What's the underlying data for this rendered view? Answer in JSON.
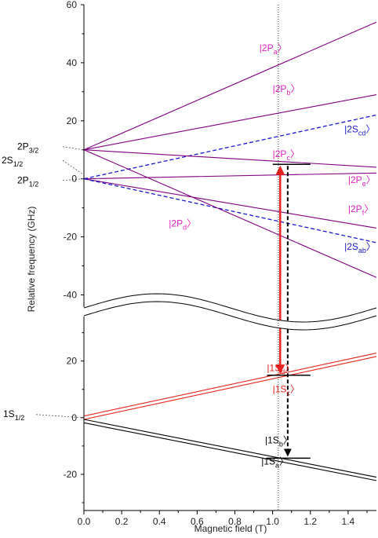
{
  "chart_data": {
    "type": "line",
    "xlabel": "Magnetic field (T)",
    "ylabel": "Relative frequency (GHz)",
    "xlim": [
      0,
      1.55
    ],
    "x_ticks": [
      "0.0",
      "0.2",
      "0.4",
      "0.6",
      "0.8",
      "1.0",
      "1.2",
      "1.4"
    ],
    "marker_line_x": 1.03,
    "colors": {
      "axis": "#000000",
      "p_levels": "#800080",
      "s2_levels": "#1a1acc",
      "s1d_levels": "#e8231f",
      "s1ab_levels": "#000000",
      "labels_p": "#e020c0",
      "labels_2s": "#1a1acc",
      "labels_1s_red": "#e8231f"
    },
    "upper_panel": {
      "ylim": [
        -48,
        60
      ],
      "y_ticks": [
        "60",
        "40",
        "20",
        "0",
        "-20",
        "-40"
      ],
      "y_tick_values": [
        60,
        40,
        20,
        0,
        -20,
        -40
      ],
      "left_labels": [
        {
          "main": "2P",
          "sub": "3/2",
          "y": 10
        },
        {
          "main": "2S",
          "sub": "1/2",
          "y": 1.5
        },
        {
          "main": "2P",
          "sub": "1/2",
          "y": 0
        }
      ],
      "series": [
        {
          "name": "|2Pa⟩",
          "kind": "P",
          "x": [
            0,
            1.55
          ],
          "y": [
            10,
            54
          ],
          "label": {
            "main": "|2P",
            "sub": "a",
            "x": 0.93,
            "y": 44
          }
        },
        {
          "name": "|2Pb⟩",
          "kind": "P",
          "x": [
            0,
            1.55
          ],
          "y": [
            10,
            29
          ],
          "label": {
            "main": "|2P",
            "sub": "b",
            "x": 1.0,
            "y": 30
          }
        },
        {
          "name": "|2Scd⟩",
          "kind": "2S",
          "x": [
            0,
            1.55
          ],
          "y": [
            0,
            22
          ],
          "label": {
            "main": "|2S",
            "sub": "cd",
            "x": 1.38,
            "y": 16
          }
        },
        {
          "name": "|2Pc⟩",
          "kind": "P",
          "x": [
            0,
            1.55
          ],
          "y": [
            10,
            4
          ],
          "label": {
            "main": "|2P",
            "sub": "c",
            "x": 1.0,
            "y": 7.5
          }
        },
        {
          "name": "|2Pe⟩",
          "kind": "P",
          "x": [
            0,
            1.55
          ],
          "y": [
            0,
            2
          ],
          "label": {
            "main": "|2P",
            "sub": "e",
            "x": 1.4,
            "y": -1.5
          }
        },
        {
          "name": "|2Pf⟩",
          "kind": "P",
          "x": [
            0,
            1.55
          ],
          "y": [
            0,
            -17
          ],
          "label": {
            "main": "|2P",
            "sub": "f",
            "x": 1.4,
            "y": -11.5
          }
        },
        {
          "name": "|2Sab⟩",
          "kind": "2S",
          "x": [
            0,
            1.55
          ],
          "y": [
            0,
            -22
          ],
          "label": {
            "main": "|2S",
            "sub": "ab",
            "x": 1.38,
            "y": -24.5
          }
        },
        {
          "name": "|2Pd⟩",
          "kind": "P",
          "x": [
            0,
            1.55
          ],
          "y": [
            10,
            -34
          ],
          "label": {
            "main": "|2P",
            "sub": "d",
            "x": 0.45,
            "y": -16.5
          }
        }
      ],
      "level_bar": {
        "x": [
          1.0,
          1.2
        ],
        "y": 5
      }
    },
    "lower_panel": {
      "ylim": [
        -30,
        36
      ],
      "y_ticks": [
        "20",
        "0",
        "-20"
      ],
      "y_tick_values": [
        20,
        0,
        -20
      ],
      "left_labels": [
        {
          "main": "1S",
          "sub": "1/2",
          "y": 0
        }
      ],
      "series": [
        {
          "name": "|1Sd⟩",
          "kind": "1Sd",
          "x": [
            0,
            1.55
          ],
          "y": [
            0.6,
            22.8
          ],
          "label": {
            "main": "|1S",
            "sub": "d",
            "x": 0.97,
            "y": 16.5
          }
        },
        {
          "name": "|1Sc⟩",
          "kind": "1Sd",
          "x": [
            0,
            1.55
          ],
          "y": [
            -0.6,
            21.6
          ],
          "label": {
            "main": "|1S",
            "sub": "c",
            "x": 1.0,
            "y": 9
          }
        },
        {
          "name": "|1Sb⟩",
          "kind": "1Sa",
          "x": [
            0,
            1.55
          ],
          "y": [
            -0.6,
            -21.0
          ],
          "label": {
            "main": "|1S",
            "sub": "b",
            "x": 0.96,
            "y": -9
          }
        },
        {
          "name": "|1Sa⟩",
          "kind": "1Sa",
          "x": [
            0,
            1.55
          ],
          "y": [
            -1.8,
            -22.2
          ],
          "label": {
            "main": "|1S",
            "sub": "a",
            "x": 0.94,
            "y": -16.5
          }
        }
      ],
      "level_bars": [
        {
          "x": [
            0.97,
            1.2
          ],
          "y": 15
        },
        {
          "x": [
            0.97,
            1.2
          ],
          "y": -14.3
        }
      ]
    },
    "transitions": [
      {
        "kind": "red",
        "x": 1.04,
        "from_lower_y": 15,
        "to_upper_y": 5
      },
      {
        "kind": "black-dashed",
        "x": 1.08,
        "from_upper_y": 5,
        "to_lower_y": -14.3
      }
    ]
  }
}
